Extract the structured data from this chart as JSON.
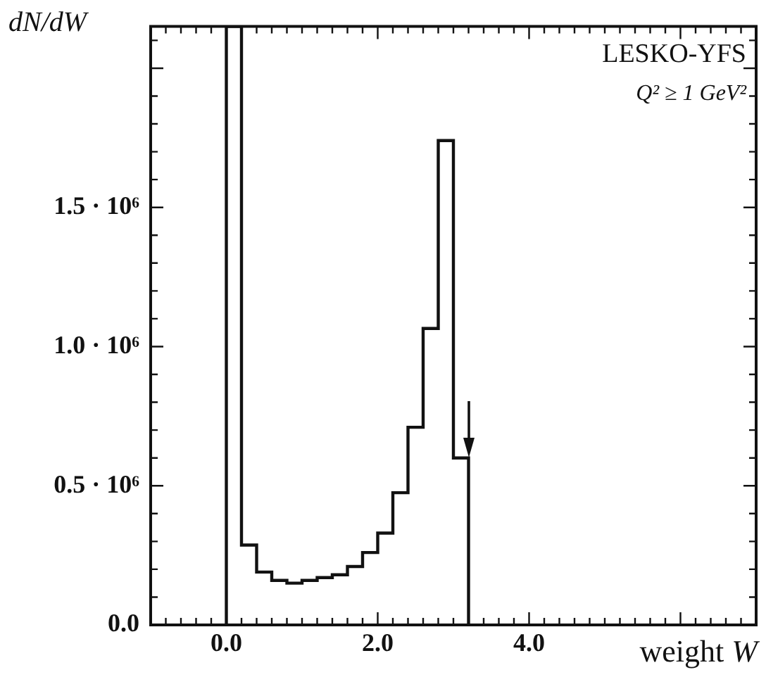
{
  "chart_data": {
    "type": "histogram",
    "xlabel": "weight W",
    "ylabel": "dN/dW",
    "annotations": [
      "LESKO-YFS",
      "Q² ≥ 1 GeV²"
    ],
    "bins": [
      0,
      0.2,
      0.4,
      0.6,
      0.8,
      1.0,
      1.2,
      1.4,
      1.6,
      1.8,
      2.0,
      2.2,
      2.4,
      2.6,
      2.8,
      3.0,
      3.2
    ],
    "values": [
      2150000,
      287000,
      190000,
      160000,
      150000,
      160000,
      170000,
      180000,
      210000,
      260000,
      330000,
      475000,
      710000,
      1065000,
      1740000,
      600000
    ],
    "color": "#111111",
    "xlim": [
      -1,
      7
    ],
    "xticks": [
      {
        "value": 0,
        "label": "0.0"
      },
      {
        "value": 2,
        "label": "2.0"
      },
      {
        "value": 4,
        "label": "4.0"
      },
      {
        "value": 6,
        "label": null
      }
    ],
    "ylim": [
      0,
      2150000
    ],
    "yticks": [
      {
        "value": 0,
        "label": "0.0"
      },
      {
        "value": 500000,
        "label": "0.5 · 10⁶"
      },
      {
        "value": 1000000,
        "label": "1.0 · 10⁶"
      },
      {
        "value": 1500000,
        "label": "1.5 · 10⁶"
      },
      {
        "value": 2000000,
        "label": null
      }
    ],
    "grid": false,
    "legend": false
  }
}
